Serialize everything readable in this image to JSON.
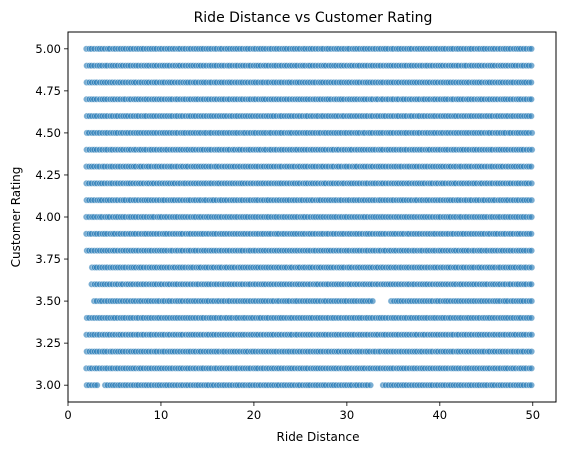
{
  "chart_data": {
    "type": "scatter",
    "title": "Ride Distance vs Customer Rating",
    "xlabel": "Ride Distance",
    "ylabel": "Customer Rating",
    "xlim": [
      0,
      52.5
    ],
    "ylim": [
      2.9,
      5.1
    ],
    "x_ticks": [
      0,
      10,
      20,
      30,
      40,
      50
    ],
    "x_tick_labels": [
      "0",
      "10",
      "20",
      "30",
      "40",
      "50"
    ],
    "y_ticks": [
      3.0,
      3.25,
      3.5,
      3.75,
      4.0,
      4.25,
      4.5,
      4.75,
      5.0
    ],
    "y_tick_labels": [
      "3.00",
      "3.25",
      "3.50",
      "3.75",
      "4.00",
      "4.25",
      "4.50",
      "4.75",
      "5.00"
    ],
    "grid": false,
    "point_color": "#1f77b4",
    "x_range_of_points": [
      2.0,
      50.0
    ],
    "rating_levels": [
      3.0,
      3.1,
      3.2,
      3.3,
      3.4,
      3.5,
      3.6,
      3.7,
      3.8,
      3.9,
      4.0,
      4.1,
      4.2,
      4.3,
      4.4,
      4.5,
      4.6,
      4.7,
      4.8,
      4.9,
      5.0
    ],
    "gaps": [
      {
        "rating": 3.0,
        "x_from": 3.3,
        "x_to": 3.9
      },
      {
        "rating": 3.0,
        "x_from": 32.6,
        "x_to": 33.7
      },
      {
        "rating": 3.5,
        "x_from": 2.0,
        "x_to": 2.6
      },
      {
        "rating": 3.5,
        "x_from": 33.0,
        "x_to": 34.6
      },
      {
        "rating": 3.7,
        "x_from": 2.0,
        "x_to": 2.4
      },
      {
        "rating": 3.6,
        "x_from": 2.0,
        "x_to": 2.3
      }
    ]
  }
}
